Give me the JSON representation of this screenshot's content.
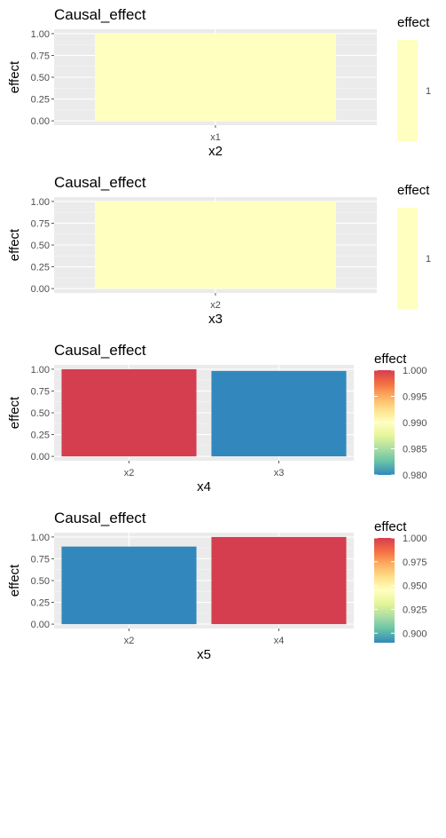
{
  "chart_data": [
    {
      "type": "bar",
      "title": "Causal_effect",
      "xlabel": "x2",
      "ylabel": "effect",
      "categories": [
        "x1"
      ],
      "values": [
        1.0
      ],
      "ylim": [
        -0.05,
        1.05
      ],
      "yticks": [
        "0.00",
        "0.25",
        "0.50",
        "0.75",
        "1.00"
      ],
      "grid": true,
      "legend": {
        "title": "effect",
        "placement": "right",
        "kind": "discrete",
        "labels": [
          "1"
        ],
        "colors": [
          "#FFFFBF"
        ]
      },
      "bar_colors": [
        "#FFFFBF"
      ]
    },
    {
      "type": "bar",
      "title": "Causal_effect",
      "xlabel": "x3",
      "ylabel": "effect",
      "categories": [
        "x2"
      ],
      "values": [
        1.0
      ],
      "ylim": [
        -0.05,
        1.05
      ],
      "yticks": [
        "0.00",
        "0.25",
        "0.50",
        "0.75",
        "1.00"
      ],
      "grid": true,
      "legend": {
        "title": "effect",
        "placement": "right",
        "kind": "discrete",
        "labels": [
          "1"
        ],
        "colors": [
          "#FFFFBF"
        ]
      },
      "bar_colors": [
        "#FFFFBF"
      ]
    },
    {
      "type": "bar",
      "title": "Causal_effect",
      "xlabel": "x4",
      "ylabel": "effect",
      "categories": [
        "x2",
        "x3"
      ],
      "values": [
        1.0,
        0.98
      ],
      "ylim": [
        -0.05,
        1.05
      ],
      "yticks": [
        "0.00",
        "0.25",
        "0.50",
        "0.75",
        "1.00"
      ],
      "grid": true,
      "legend": {
        "title": "effect",
        "placement": "right",
        "kind": "gradient",
        "range": [
          0.98,
          1.0
        ],
        "labels": [
          "0.980",
          "0.985",
          "0.990",
          "0.995",
          "1.000"
        ],
        "label_values": [
          0.98,
          0.985,
          0.99,
          0.995,
          1.0
        ]
      },
      "bar_colors": [
        "#D53E4F",
        "#3288BD"
      ]
    },
    {
      "type": "bar",
      "title": "Causal_effect",
      "xlabel": "x5",
      "ylabel": "effect",
      "categories": [
        "x2",
        "x4"
      ],
      "values": [
        0.89,
        1.0
      ],
      "ylim": [
        -0.05,
        1.05
      ],
      "yticks": [
        "0.00",
        "0.25",
        "0.50",
        "0.75",
        "1.00"
      ],
      "grid": true,
      "legend": {
        "title": "effect",
        "placement": "right",
        "kind": "gradient",
        "range": [
          0.89,
          1.0
        ],
        "labels": [
          "0.900",
          "0.925",
          "0.950",
          "0.975",
          "1.000"
        ],
        "label_values": [
          0.9,
          0.925,
          0.95,
          0.975,
          1.0
        ]
      },
      "bar_colors": [
        "#3288BD",
        "#D53E4F"
      ]
    }
  ],
  "palette": {
    "panel_background": "#EBEBEB",
    "grid_major": "#FFFFFF",
    "grid_minor": "#F5F5F5",
    "spectral_scale": [
      "#3288BD",
      "#66C2A5",
      "#ABDDA4",
      "#E6F598",
      "#FFFFBF",
      "#FEE08B",
      "#FDAE61",
      "#F46D43",
      "#D53E4F"
    ]
  }
}
